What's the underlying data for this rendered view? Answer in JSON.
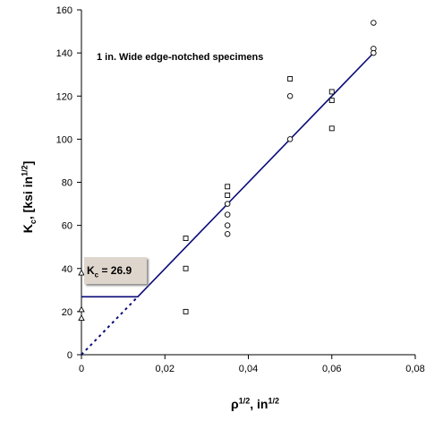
{
  "chart_data": {
    "type": "scatter",
    "title": "",
    "annotation": "1 in. Wide edge-notched specimens",
    "xlabel": {
      "main": "ρ",
      "sup": "1/2",
      "sep": ", in",
      "unit_sup": "1/2"
    },
    "ylabel": {
      "main": "K",
      "sub": "c",
      "sep": ", [ksi in",
      "unit_sup": "1/2",
      "close": "]"
    },
    "xlim": [
      0,
      0.08
    ],
    "ylim": [
      0,
      160
    ],
    "x_ticks": [
      0,
      0.02,
      0.04,
      0.06,
      0.08
    ],
    "x_tick_labels": [
      "0",
      "0,02",
      "0,04",
      "0,06",
      "0,08"
    ],
    "y_ticks": [
      0,
      20,
      40,
      60,
      80,
      100,
      120,
      140,
      160
    ],
    "y_tick_labels": [
      "0",
      "20",
      "40",
      "60",
      "80",
      "100",
      "120",
      "140",
      "160"
    ],
    "grid": false,
    "kc_box": {
      "main": "K",
      "sub": "c",
      "rest": " = 26.9"
    },
    "series": [
      {
        "marker": "square",
        "color": "#000000",
        "points": [
          [
            0.025,
            54
          ],
          [
            0.025,
            40
          ],
          [
            0.025,
            20
          ],
          [
            0.035,
            78
          ],
          [
            0.035,
            74
          ],
          [
            0.05,
            128
          ],
          [
            0.06,
            122
          ],
          [
            0.06,
            118
          ],
          [
            0.06,
            105
          ]
        ]
      },
      {
        "marker": "circle",
        "color": "#000000",
        "points": [
          [
            0.035,
            70
          ],
          [
            0.035,
            65
          ],
          [
            0.035,
            60
          ],
          [
            0.035,
            56
          ],
          [
            0.05,
            120
          ],
          [
            0.05,
            100
          ],
          [
            0.07,
            154
          ],
          [
            0.07,
            142
          ],
          [
            0.07,
            140
          ]
        ]
      },
      {
        "marker": "triangle",
        "color": "#000000",
        "points": [
          [
            0,
            38
          ],
          [
            0,
            21
          ],
          [
            0,
            17
          ]
        ]
      }
    ],
    "fit_lines": [
      {
        "style": "solid",
        "color": "#0a0a7a",
        "points": [
          [
            0,
            26.9
          ],
          [
            0.0135,
            26.9
          ],
          [
            0.07,
            140
          ]
        ]
      },
      {
        "style": "dashed",
        "color": "#0a0a7a",
        "points": [
          [
            0,
            0
          ],
          [
            0.0135,
            26.9
          ]
        ]
      }
    ]
  }
}
